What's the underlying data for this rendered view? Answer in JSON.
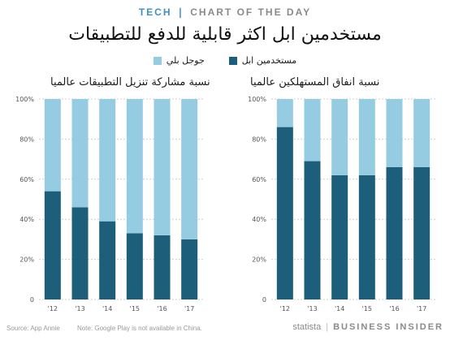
{
  "header": {
    "tag_left": "TECH",
    "tag_sep": "❘",
    "tag_right": "CHART OF THE DAY",
    "title": "مستخدمين ابل اكثر قابلية للدفع للتطبيقات"
  },
  "legend": {
    "apple_label": "مستخدمين ابل",
    "google_label": "جوجل بلي",
    "apple_color": "#1d5f7a",
    "google_color": "#96cce2"
  },
  "chart_data": [
    {
      "type": "bar",
      "stacked": true,
      "title": "نسبة مشاركة تنزيل التطبيقات عالميا",
      "categories": [
        "'12",
        "'13",
        "'14",
        "'15",
        "'16",
        "'17"
      ],
      "series": [
        {
          "name": "مستخدمين ابل",
          "values": [
            54,
            46,
            39,
            33,
            32,
            30
          ]
        },
        {
          "name": "جوجل بلي",
          "values": [
            46,
            54,
            61,
            67,
            68,
            70
          ]
        }
      ],
      "ylim": [
        0,
        100
      ],
      "yticks": [
        "0",
        "20%",
        "40%",
        "60%",
        "80%",
        "100%"
      ],
      "grid": true
    },
    {
      "type": "bar",
      "stacked": true,
      "title": "نسبة انفاق المستهلكين عالميا",
      "categories": [
        "'12",
        "'13",
        "'14",
        "'15",
        "'16",
        "'17"
      ],
      "series": [
        {
          "name": "مستخدمين ابل",
          "values": [
            86,
            69,
            62,
            62,
            66,
            66
          ]
        },
        {
          "name": "جوجل بلي",
          "values": [
            14,
            31,
            38,
            38,
            34,
            34
          ]
        }
      ],
      "ylim": [
        0,
        100
      ],
      "yticks": [
        "0",
        "20%",
        "40%",
        "60%",
        "80%",
        "100%"
      ],
      "grid": true
    }
  ],
  "footer": {
    "source": "Source: App Annie",
    "note": "Note: Google Play is not available in China.",
    "brand_statista": "statista",
    "brand_bi": "BUSINESS INSIDER"
  }
}
